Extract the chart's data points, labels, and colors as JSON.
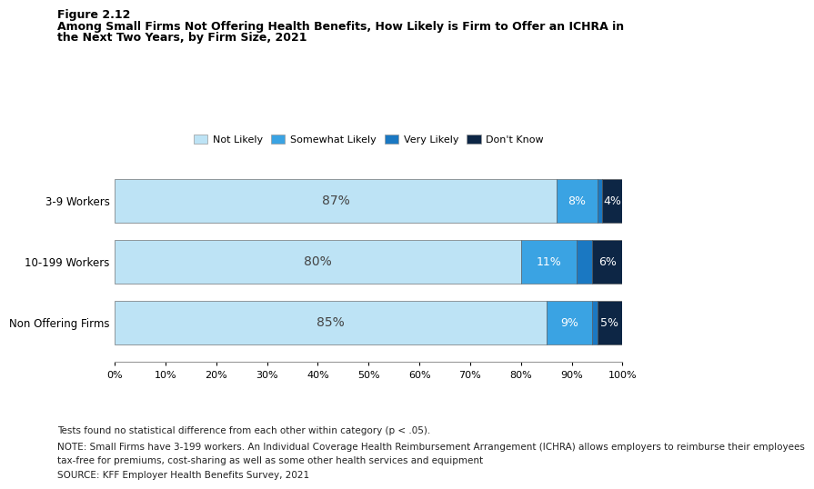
{
  "title_line1": "Figure 2.12",
  "title_line2a": "Among Small Firms Not Offering Health Benefits, How Likely is Firm to Offer an ICHRA in",
  "title_line2b": "the Next Two Years, by Firm Size, 2021",
  "categories": [
    "3-9 Workers",
    "10-199 Workers",
    "Non Offering Firms"
  ],
  "series": {
    "Not Likely": [
      87,
      80,
      85
    ],
    "Somewhat Likely": [
      8,
      11,
      9
    ],
    "Very Likely": [
      1,
      3,
      1
    ],
    "Don't Know": [
      4,
      6,
      5
    ]
  },
  "colors": {
    "Not Likely": "#bde3f5",
    "Somewhat Likely": "#3aa3e3",
    "Very Likely": "#1a78c2",
    "Don't Know": "#0d2645"
  },
  "labels": {
    "Not Likely": [
      "87%",
      "80%",
      "85%"
    ],
    "Somewhat Likely": [
      "8%",
      "11%",
      "9%"
    ],
    "Very Likely": [
      "",
      "",
      ""
    ],
    "Don't Know": [
      "4%",
      "6%",
      "5%"
    ]
  },
  "xlim": [
    0,
    100
  ],
  "xticks": [
    0,
    10,
    20,
    30,
    40,
    50,
    60,
    70,
    80,
    90,
    100
  ],
  "footnote1": "Tests found no statistical difference from each other within category (p < .05).",
  "footnote2": "NOTE: Small Firms have 3-199 workers. An Individual Coverage Health Reimbursement Arrangement (ICHRA) allows employers to reimburse their employees",
  "footnote3": "tax-free for premiums, cost-sharing as well as some other health services and equipment",
  "footnote4": "SOURCE: KFF Employer Health Benefits Survey, 2021",
  "background_color": "#ffffff",
  "bar_edge_color": "#555555",
  "bar_height": 0.72
}
